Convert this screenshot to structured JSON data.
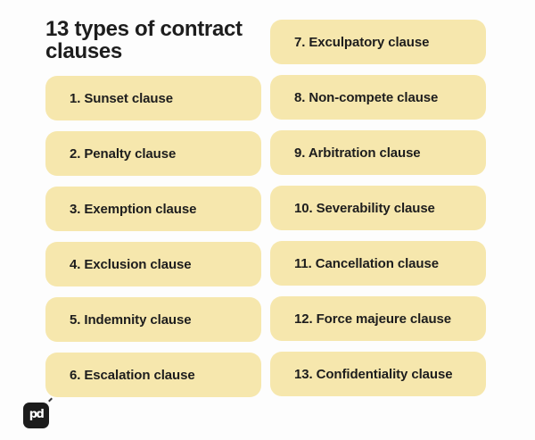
{
  "title": "13 types of contract clauses",
  "clauses": {
    "left": [
      "1. Sunset clause",
      "2. Penalty clause",
      "3. Exemption clause",
      "4. Exclusion clause",
      "5. Indemnity clause",
      "6. Escalation clause"
    ],
    "right": [
      "7. Exculpatory clause",
      "8. Non-compete clause",
      "9. Arbitration clause",
      "10. Severability clause",
      "11. Cancellation clause",
      "12. Force majeure clause",
      "13. Confidentiality clause"
    ]
  },
  "logo": {
    "text": "pd"
  },
  "colors": {
    "page": "#fdfdfd",
    "pill": "#f6e7ad",
    "text": "#1d1d1d",
    "logo": "#1c1c1c",
    "logo_text": "#ffffff"
  }
}
